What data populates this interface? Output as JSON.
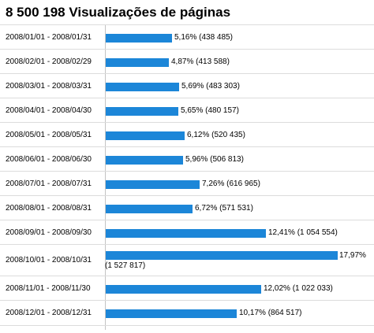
{
  "title": "8 500 198 Visualizações de páginas",
  "colors": {
    "bar": "#1c86d8"
  },
  "chart_data": {
    "type": "bar",
    "orientation": "horizontal",
    "title": "8 500 198 Visualizações de páginas",
    "total": 8500198,
    "categories": [
      "2008/01/01 - 2008/01/31",
      "2008/02/01 - 2008/02/29",
      "2008/03/01 - 2008/03/31",
      "2008/04/01 - 2008/04/30",
      "2008/05/01 - 2008/05/31",
      "2008/06/01 - 2008/06/30",
      "2008/07/01 - 2008/07/31",
      "2008/08/01 - 2008/08/31",
      "2008/09/01 - 2008/09/30",
      "2008/10/01 - 2008/10/31",
      "2008/11/01 - 2008/11/30",
      "2008/12/01 - 2008/12/31"
    ],
    "values": [
      438485,
      413588,
      483303,
      480157,
      520435,
      506813,
      616965,
      571531,
      1054554,
      1527817,
      1022033,
      864517
    ],
    "percent_labels": [
      "5,16%",
      "4,87%",
      "5,69%",
      "5,65%",
      "6,12%",
      "5,96%",
      "7,26%",
      "6,72%",
      "12,41%",
      "17,97%",
      "12,02%",
      "10,17%"
    ],
    "count_labels": [
      "(438 485)",
      "(413 588)",
      "(483 303)",
      "(480 157)",
      "(520 435)",
      "(506 813)",
      "(616 965)",
      "(571 531)",
      "(1 054 554)",
      "(1 527 817)",
      "(1 022 033)",
      "(864 517)"
    ]
  }
}
